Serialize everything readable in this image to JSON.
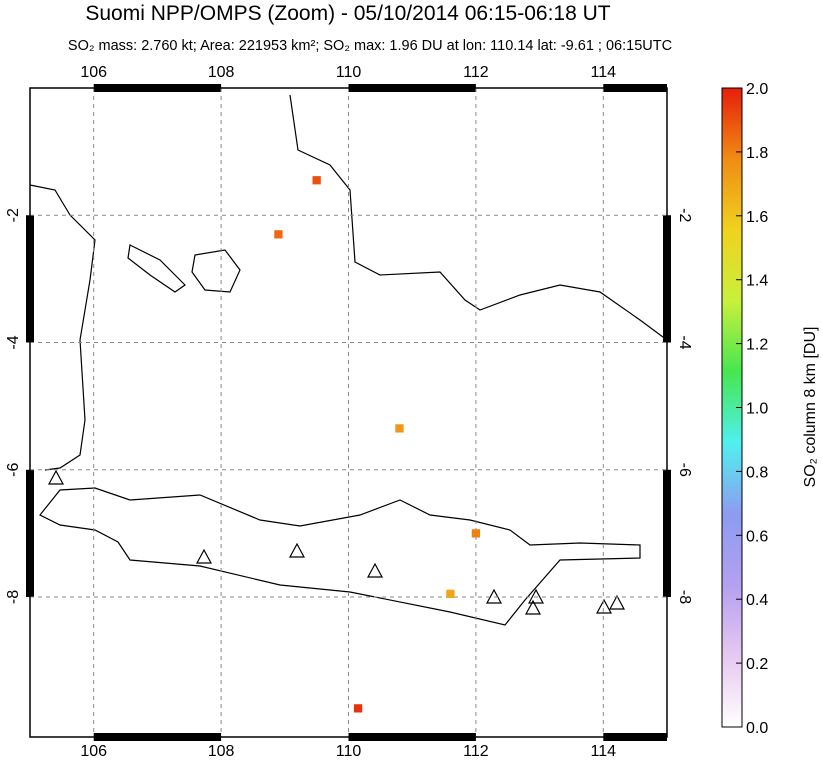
{
  "title": "Suomi NPP/OMPS (Zoom) - 05/10/2014 06:15-06:18 UT",
  "subtitle": "SO₂ mass: 2.760 kt; Area: 221953 km²; SO₂ max: 1.96 DU at lon: 110.14 lat: -9.61 ; 06:15UTC",
  "map": {
    "xlim": [
      105,
      115
    ],
    "ylim": [
      -10.2,
      0
    ],
    "xticks": [
      106,
      108,
      110,
      112,
      114
    ],
    "yticks": [
      -2,
      -4,
      -6,
      -8
    ],
    "pixels": [
      {
        "lon": 109.5,
        "lat": -1.45,
        "value": 1.9
      },
      {
        "lon": 108.9,
        "lat": -2.3,
        "value": 1.85
      },
      {
        "lon": 110.15,
        "lat": -9.75,
        "value": 1.96
      },
      {
        "lon": 112.0,
        "lat": -7.0,
        "value": 1.8
      },
      {
        "lon": 111.6,
        "lat": -7.95,
        "value": 1.7
      },
      {
        "lon": 110.8,
        "lat": -5.35,
        "value": 1.75
      }
    ]
  },
  "colorbar": {
    "label": "SO₂ column 8 km [DU]",
    "lim": [
      0,
      2
    ],
    "ticks": [
      {
        "value": 0,
        "label": "0.0"
      },
      {
        "value": 0.2,
        "label": "0.2"
      },
      {
        "value": 0.4,
        "label": "0.4"
      },
      {
        "value": 0.6,
        "label": "0.6"
      },
      {
        "value": 0.8,
        "label": "0.8"
      },
      {
        "value": 1,
        "label": "1.0"
      },
      {
        "value": 1.2,
        "label": "1.2"
      },
      {
        "value": 1.4,
        "label": "1.4"
      },
      {
        "value": 1.6,
        "label": "1.6"
      },
      {
        "value": 1.8,
        "label": "1.8"
      },
      {
        "value": 2,
        "label": "2.0"
      }
    ],
    "colors": [
      "#ffffff",
      "#e6c8f0",
      "#b4a0f0",
      "#8c9cf0",
      "#50f0f0",
      "#46e650",
      "#c8f03c",
      "#f0d21e",
      "#f08c14",
      "#e61e0a"
    ]
  }
}
